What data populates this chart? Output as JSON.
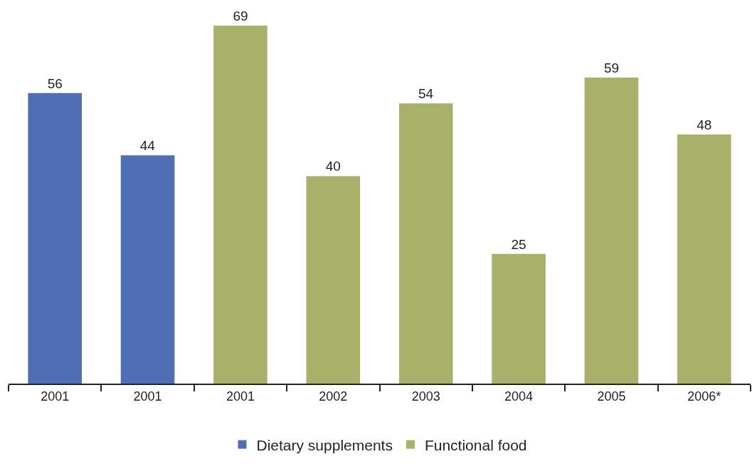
{
  "chart_data": {
    "type": "bar",
    "categories": [
      "2001",
      "2001",
      "2001",
      "2002",
      "2003",
      "2004",
      "2005",
      "2006*"
    ],
    "series": [
      {
        "name": "Dietary supplements",
        "color": "#4f6eb5",
        "values": [
          56,
          44,
          null,
          null,
          null,
          null,
          null,
          null
        ]
      },
      {
        "name": "Functional food",
        "color": "#a9b06a",
        "values": [
          null,
          null,
          69,
          40,
          54,
          25,
          59,
          48
        ]
      }
    ],
    "data_labels": true,
    "legend": "bottom",
    "grid": false
  }
}
